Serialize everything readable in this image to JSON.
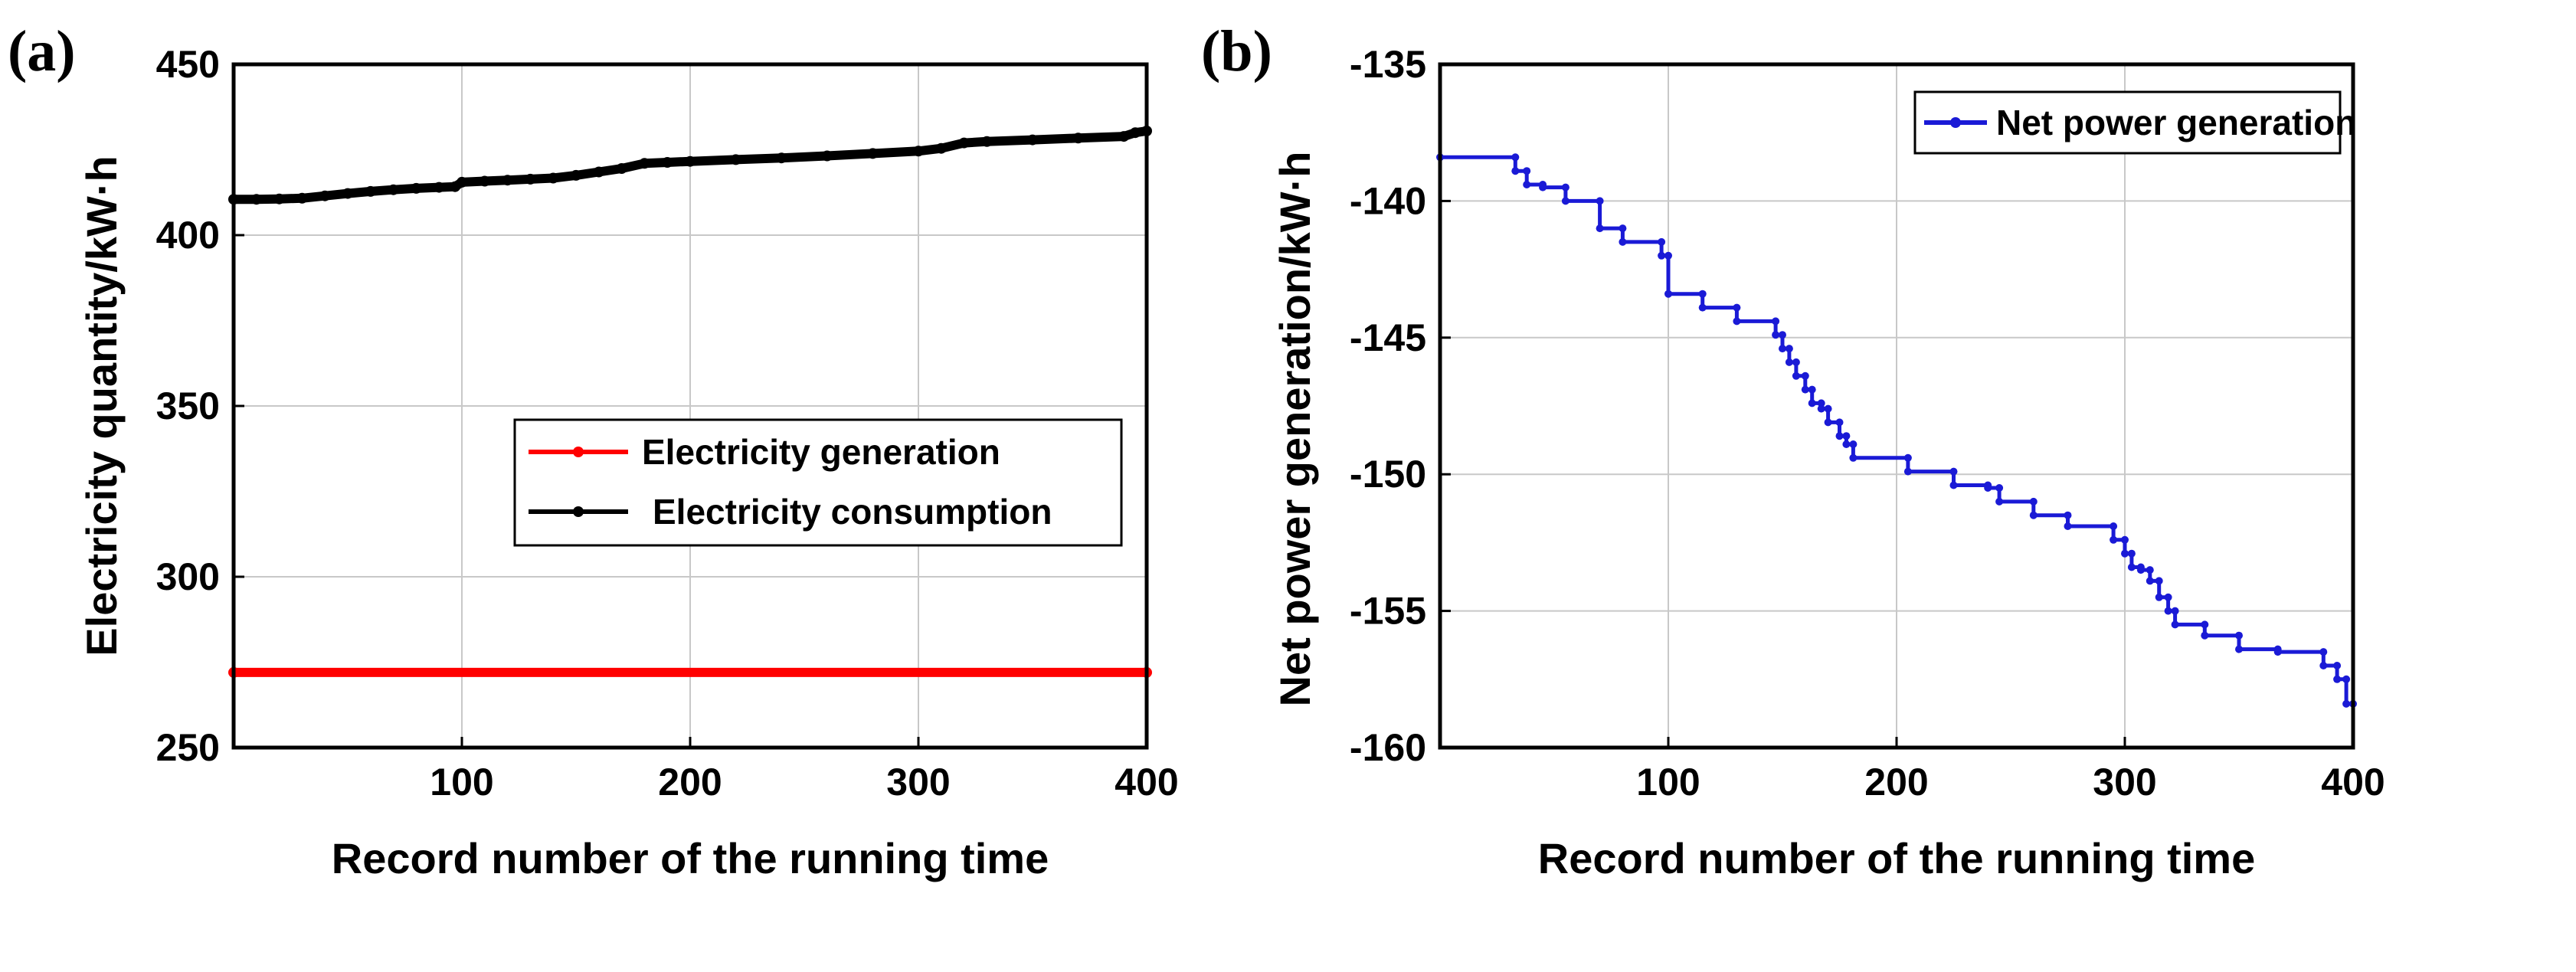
{
  "chart_data": [
    {
      "type": "line",
      "panel_label": "(a)",
      "xlabel": "Record number of the running time",
      "ylabel": "Electricity quantity/kW·h",
      "xlim": [
        0,
        400
      ],
      "ylim": [
        250,
        450
      ],
      "xticks": [
        100,
        200,
        300,
        400
      ],
      "yticks": [
        250,
        300,
        350,
        400,
        450
      ],
      "grid": true,
      "legend_position": "right-middle",
      "series": [
        {
          "name": "Electricity generation",
          "color": "#ff0000",
          "marker": "dot",
          "x": [
            0,
            400
          ],
          "y": [
            272,
            272
          ]
        },
        {
          "name": "Electricity consumption",
          "color": "#000000",
          "marker": "dot",
          "x": [
            0,
            10,
            20,
            30,
            40,
            50,
            60,
            70,
            80,
            90,
            97,
            100,
            110,
            120,
            130,
            140,
            150,
            160,
            170,
            180,
            190,
            200,
            220,
            240,
            260,
            280,
            300,
            310,
            320,
            330,
            350,
            370,
            390,
            395,
            400
          ],
          "y": [
            410.5,
            410.5,
            410.6,
            410.8,
            411.5,
            412.2,
            412.8,
            413.3,
            413.7,
            414.0,
            414.2,
            415.5,
            415.8,
            416.1,
            416.4,
            416.7,
            417.5,
            418.5,
            419.5,
            421.0,
            421.3,
            421.6,
            422.1,
            422.6,
            423.2,
            423.9,
            424.6,
            425.4,
            427.0,
            427.4,
            427.9,
            428.4,
            428.9,
            430.0,
            430.5
          ]
        }
      ]
    },
    {
      "type": "line",
      "panel_label": "(b)",
      "xlabel": "Record number of the running time",
      "ylabel": "Net power generation/kW·h",
      "xlim": [
        0,
        400
      ],
      "ylim": [
        -160,
        -135
      ],
      "xticks": [
        100,
        200,
        300,
        400
      ],
      "yticks": [
        -160,
        -155,
        -150,
        -145,
        -140,
        -135
      ],
      "grid": true,
      "legend_position": "top-right",
      "series": [
        {
          "name": "Net power generation",
          "color": "#1a1ad6",
          "marker": "dot",
          "x": [
            0,
            33,
            33,
            38,
            38,
            45,
            45,
            55,
            55,
            70,
            70,
            80,
            80,
            97,
            97,
            100,
            100,
            115,
            115,
            130,
            130,
            147,
            147,
            150,
            150,
            153,
            153,
            156,
            156,
            160,
            160,
            163,
            163,
            167,
            167,
            170,
            170,
            175,
            175,
            178,
            178,
            181,
            181,
            205,
            205,
            225,
            225,
            240,
            240,
            245,
            245,
            260,
            260,
            275,
            275,
            295,
            295,
            300,
            300,
            303,
            303,
            307,
            307,
            311,
            311,
            315,
            315,
            319,
            319,
            322,
            322,
            335,
            335,
            350,
            350,
            367,
            367,
            387,
            387,
            393,
            393,
            397,
            397,
            400
          ],
          "y": [
            -138.4,
            -138.4,
            -138.9,
            -138.9,
            -139.4,
            -139.4,
            -139.5,
            -139.5,
            -140.0,
            -140.0,
            -141.0,
            -141.0,
            -141.5,
            -141.5,
            -142.0,
            -142.0,
            -143.4,
            -143.4,
            -143.9,
            -143.9,
            -144.4,
            -144.4,
            -144.9,
            -144.9,
            -145.4,
            -145.4,
            -145.9,
            -145.9,
            -146.4,
            -146.4,
            -146.9,
            -146.9,
            -147.4,
            -147.4,
            -147.6,
            -147.6,
            -148.1,
            -148.1,
            -148.6,
            -148.6,
            -148.9,
            -148.9,
            -149.4,
            -149.4,
            -149.9,
            -149.9,
            -150.4,
            -150.4,
            -150.5,
            -150.5,
            -151.0,
            -151.0,
            -151.5,
            -151.5,
            -151.9,
            -151.9,
            -152.4,
            -152.4,
            -152.9,
            -152.9,
            -153.4,
            -153.4,
            -153.5,
            -153.5,
            -153.9,
            -153.9,
            -154.5,
            -154.5,
            -155.0,
            -155.0,
            -155.5,
            -155.5,
            -155.9,
            -155.9,
            -156.4,
            -156.4,
            -156.5,
            -156.5,
            -157.0,
            -157.0,
            -157.5,
            -157.5,
            -158.4,
            -158.4
          ]
        }
      ]
    }
  ]
}
